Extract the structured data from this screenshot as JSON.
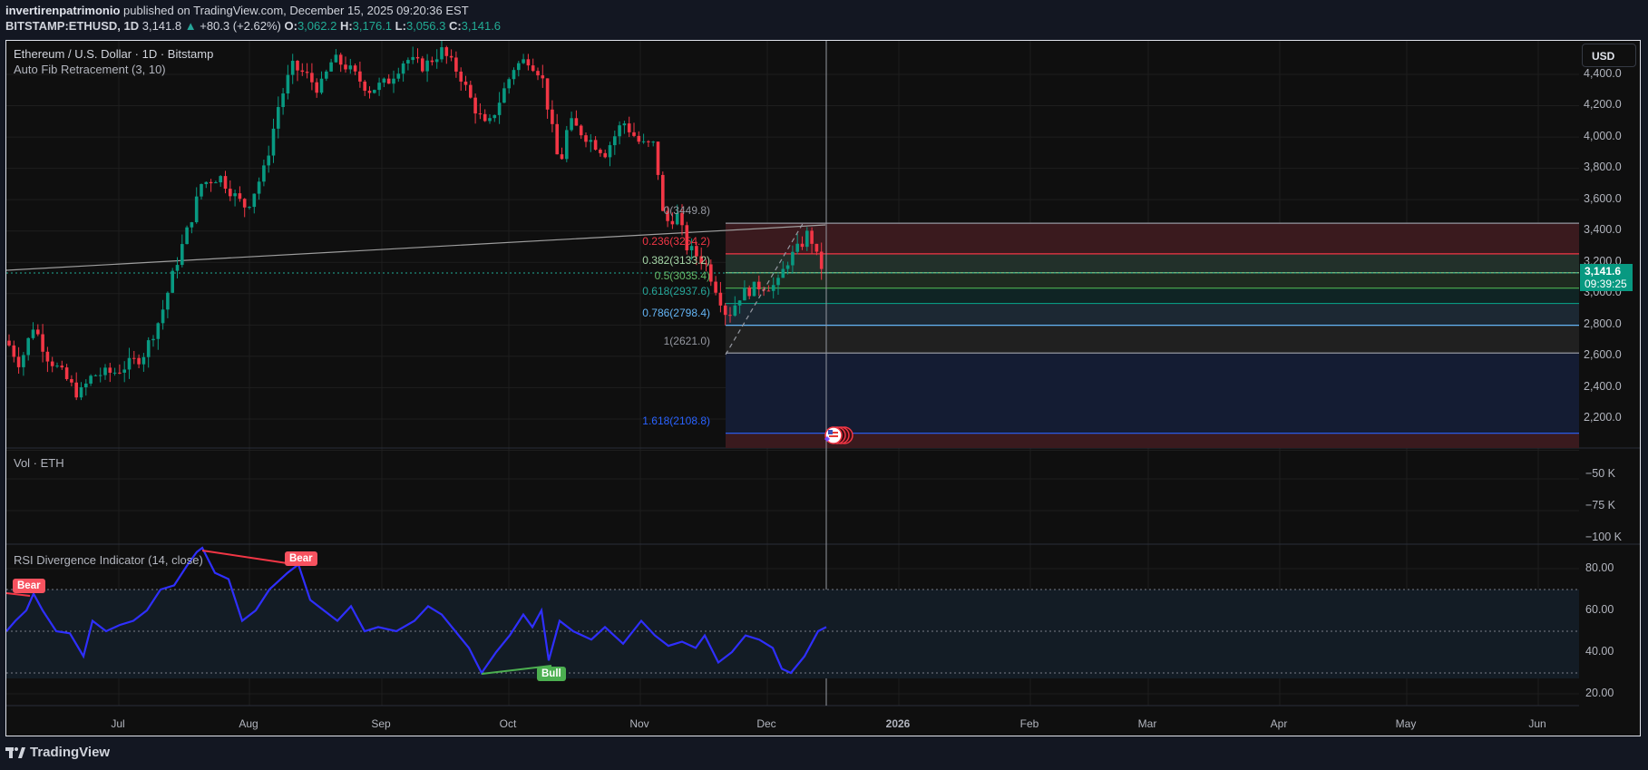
{
  "header": {
    "author": "invertirenpatrimonio",
    "published_text": "published on TradingView.com, December 15, 2025 09:20:36 EST",
    "symbol": "BITSTAMP:ETHUSD, 1D",
    "last": "3,141.8",
    "change": "+80.3 (+2.62%)",
    "o_label": "O:",
    "o": "3,062.2",
    "h_label": "H:",
    "h": "3,176.1",
    "l_label": "L:",
    "l": "3,056.3",
    "c_label": "C:",
    "c": "3,141.6"
  },
  "chart": {
    "title": "Ethereum / U.S. Dollar · 1D · Bitstamp",
    "indicator": "Auto Fib Retracement (3, 10)",
    "currency_button": "USD",
    "price_axis": [
      "4,400.0",
      "4,200.0",
      "4,000.0",
      "3,800.0",
      "3,600.0",
      "3,400.0",
      "3,200.0",
      "3,000.0",
      "2,800.0",
      "2,600.0",
      "2,400.0",
      "2,200.0"
    ],
    "current_price": "3,141.6",
    "countdown": "09:39:25",
    "fib_levels": [
      {
        "label": "0(3449.8)",
        "color": "#9598a1"
      },
      {
        "label": "0.236(3254.2)",
        "color": "#f23645"
      },
      {
        "label": "0.382(3133.2)",
        "color": "#81c784"
      },
      {
        "label": "0.5(3035.4)",
        "color": "#4caf50"
      },
      {
        "label": "0.618(2937.6)",
        "color": "#089981"
      },
      {
        "label": "0.786(2798.4)",
        "color": "#64b5f6"
      },
      {
        "label": "1(2621.0)",
        "color": "#9598a1"
      },
      {
        "label": "1.618(2108.8)",
        "color": "#2962ff"
      }
    ]
  },
  "volume_pane": {
    "title": "Vol · ETH",
    "axis": [
      "−50 K",
      "−75 K",
      "−100 K"
    ]
  },
  "rsi_pane": {
    "title": "RSI Divergence Indicator (14, close)",
    "axis": [
      "80.00",
      "60.00",
      "40.00",
      "20.00"
    ],
    "tags": [
      {
        "label": "Bear",
        "color": "#f7525f"
      },
      {
        "label": "Bear",
        "color": "#f7525f"
      },
      {
        "label": "Bull",
        "color": "#4caf50"
      }
    ]
  },
  "time_axis": [
    "Jul",
    "Aug",
    "Sep",
    "Oct",
    "Nov",
    "Dec",
    "2026",
    "Feb",
    "Mar",
    "Apr",
    "May",
    "Jun"
  ],
  "footer": {
    "brand": "TradingView"
  },
  "colors": {
    "up": "#089981",
    "down": "#f23645",
    "rsi": "#2f2fff",
    "background": "#0f0f0f"
  }
}
